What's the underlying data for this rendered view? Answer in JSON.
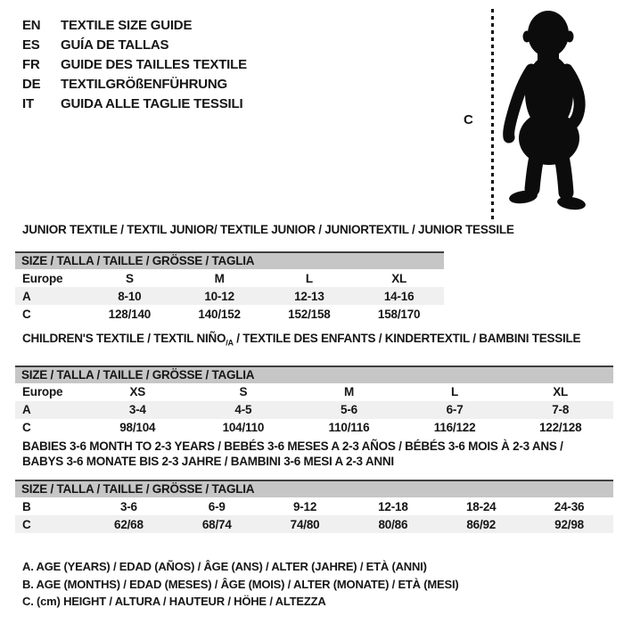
{
  "colors": {
    "background": "#ffffff",
    "size_bar_gray": "#c6c6c6",
    "size_bar_top_border": "#3f3f3f",
    "shaded_row_gray": "#f0f0f0",
    "silhouette_black": "#0c0c0c",
    "text": "#161616"
  },
  "languages": [
    {
      "code": "EN",
      "text": "TEXTILE SIZE GUIDE"
    },
    {
      "code": "ES",
      "text": "GUÍA DE TALLAS"
    },
    {
      "code": "FR",
      "text": "GUIDE DES TAILLES TEXTILE"
    },
    {
      "code": "DE",
      "text": "TEXTILGRÖßENFÜHRUNG"
    },
    {
      "code": "IT",
      "text": "GUIDA ALLE TAGLIE TESSILI"
    }
  ],
  "figure": {
    "measure_label": "C",
    "icon": "toddler-silhouette"
  },
  "tables": [
    {
      "title": "JUNIOR TEXTILE / TEXTIL JUNIOR/ TEXTILE JUNIOR / JUNIORTEXTIL / JUNIOR TESSILE",
      "size_header": "SIZE / TALLA / TAILLE / GRÖSSE / TAGLIA",
      "rows": [
        {
          "label": "Europe",
          "cells": [
            "S",
            "M",
            "L",
            "XL"
          ]
        },
        {
          "label": "A",
          "cells": [
            "8-10",
            "10-12",
            "12-13",
            "14-16"
          ]
        },
        {
          "label": "C",
          "cells": [
            "128/140",
            "140/152",
            "152/158",
            "158/170"
          ]
        }
      ]
    },
    {
      "title_part1": "CHILDREN'S TEXTILE / TEXTIL NIÑO",
      "title_sub": "/A",
      "title_part2": " / TEXTILE DES ENFANTS / KINDERTEXTIL / BAMBINI TESSILE",
      "size_header": "SIZE / TALLA / TAILLE / GRÖSSE / TAGLIA",
      "rows": [
        {
          "label": "Europe",
          "cells": [
            "XS",
            "S",
            "M",
            "L",
            "XL"
          ]
        },
        {
          "label": "A",
          "cells": [
            "3-4",
            "4-5",
            "5-6",
            "6-7",
            "7-8"
          ]
        },
        {
          "label": "C",
          "cells": [
            "98/104",
            "104/110",
            "110/116",
            "116/122",
            "122/128"
          ]
        }
      ]
    },
    {
      "title_line1": "BABIES 3-6 MONTH TO 2-3 YEARS / BEBÉS 3-6 MESES A 2-3 AÑOS / BÉBÉS 3-6 MOIS À 2-3 ANS /",
      "title_line2": "BABYS 3-6 MONATE BIS 2-3 JAHRE / BAMBINI 3-6 MESI A 2-3 ANNI",
      "size_header": "SIZE / TALLA / TAILLE / GRÖSSE / TAGLIA",
      "rows": [
        {
          "label": "B",
          "cells": [
            "3-6",
            "6-9",
            "9-12",
            "12-18",
            "18-24",
            "24-36"
          ]
        },
        {
          "label": "C",
          "cells": [
            "62/68",
            "68/74",
            "74/80",
            "80/86",
            "86/92",
            "92/98"
          ]
        }
      ]
    }
  ],
  "legend": {
    "lines": [
      "A. AGE (YEARS) / EDAD (AÑOS) / ÂGE (ANS) / ALTER (JAHRE) / ETÀ (ANNI)",
      "B. AGE (MONTHS) / EDAD (MESES) / ÂGE (MOIS) / ALTER (MONATE) / ETÀ (MESI)",
      "C. (cm) HEIGHT / ALTURA / HAUTEUR / HÖHE / ALTEZZA"
    ]
  }
}
